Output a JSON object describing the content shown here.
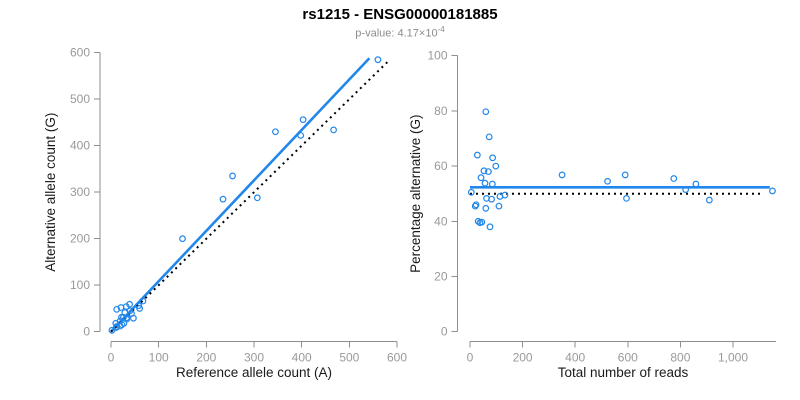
{
  "header": {
    "title": "rs1215 - ENSG00000181885",
    "subtitle_prefix": "p-value: ",
    "subtitle_value": "4.17×10",
    "subtitle_exponent": "-4"
  },
  "colors": {
    "accent_blue": "#2287ea",
    "dotted_black": "#000000",
    "axis_gray": "#8e8e8e",
    "tick_label_gray": "#999999",
    "title_black": "#000000",
    "subtitle_gray": "#8c8c8c"
  },
  "chart_data": [
    {
      "type": "scatter",
      "name": "allele-counts",
      "xlabel": "Reference allele count (A)",
      "ylabel": "Alternative allele count (G)",
      "xlim": [
        0,
        600
      ],
      "ylim": [
        0,
        600
      ],
      "xticks": [
        0,
        100,
        200,
        300,
        400,
        500,
        600
      ],
      "xtick_labels": [
        "0",
        "100",
        "200",
        "300",
        "400",
        "500",
        "600"
      ],
      "yticks": [
        0,
        100,
        200,
        300,
        400,
        500,
        600
      ],
      "ytick_labels": [
        "0",
        "100",
        "200",
        "300",
        "400",
        "500",
        "600"
      ],
      "grid": false,
      "legend": "none",
      "points": [
        [
          12,
          48
        ],
        [
          21,
          52
        ],
        [
          10,
          18
        ],
        [
          32,
          54
        ],
        [
          39,
          59
        ],
        [
          22,
          31
        ],
        [
          29,
          41
        ],
        [
          19,
          23
        ],
        [
          26,
          31
        ],
        [
          40,
          45
        ],
        [
          2,
          3
        ],
        [
          67,
          66
        ],
        [
          58,
          56
        ],
        [
          33,
          30
        ],
        [
          43,
          39
        ],
        [
          12,
          11
        ],
        [
          11,
          9
        ],
        [
          60,
          50
        ],
        [
          33,
          27
        ],
        [
          19,
          12
        ],
        [
          23,
          15
        ],
        [
          27,
          18
        ],
        [
          47,
          29
        ],
        [
          150,
          200
        ],
        [
          235,
          285
        ],
        [
          255,
          335
        ],
        [
          307,
          288
        ],
        [
          345,
          430
        ],
        [
          398,
          422
        ],
        [
          403,
          456
        ],
        [
          467,
          434
        ],
        [
          560,
          585
        ]
      ],
      "lines": [
        {
          "name": "regression-fit",
          "style": "solid",
          "color": "#2287ea",
          "width": 2.6,
          "from": [
            0,
            0
          ],
          "to": [
            542,
            588
          ]
        },
        {
          "name": "identity-line",
          "style": "dotted",
          "color": "#000000",
          "width": 2,
          "from": [
            0,
            0
          ],
          "to": [
            582,
            582
          ]
        }
      ]
    },
    {
      "type": "scatter",
      "name": "percentage-vs-coverage",
      "xlabel": "Total number of reads",
      "ylabel": "Percentage alternative (G)",
      "xlim": [
        0,
        1160
      ],
      "ylim": [
        0,
        100
      ],
      "xticks": [
        0,
        200,
        400,
        600,
        800,
        1000
      ],
      "xtick_labels": [
        "0",
        "200",
        "400",
        "600",
        "800",
        "1,000"
      ],
      "yticks": [
        0,
        20,
        40,
        60,
        80,
        100
      ],
      "ytick_labels": [
        "0",
        "20",
        "40",
        "60",
        "80",
        "100"
      ],
      "grid": false,
      "legend": "none",
      "points": [
        [
          60,
          79.7
        ],
        [
          73,
          70.6
        ],
        [
          28,
          64
        ],
        [
          86,
          63
        ],
        [
          98,
          60
        ],
        [
          53,
          58.3
        ],
        [
          70,
          58
        ],
        [
          42,
          55.8
        ],
        [
          57,
          53.8
        ],
        [
          85,
          53.5
        ],
        [
          5,
          50.5
        ],
        [
          133,
          49.5
        ],
        [
          114,
          49
        ],
        [
          63,
          48.3
        ],
        [
          82,
          48
        ],
        [
          23,
          46
        ],
        [
          20,
          45.5
        ],
        [
          110,
          45.5
        ],
        [
          60,
          44.7
        ],
        [
          31,
          40
        ],
        [
          38,
          39.5
        ],
        [
          45,
          39.7
        ],
        [
          76,
          38
        ],
        [
          350,
          56.8
        ],
        [
          523,
          54.5
        ],
        [
          590,
          56.8
        ],
        [
          595,
          48.3
        ],
        [
          775,
          55.5
        ],
        [
          820,
          51.5
        ],
        [
          859,
          53.5
        ],
        [
          910,
          47.7
        ],
        [
          1150,
          51
        ]
      ],
      "lines": [
        {
          "name": "mean-percentage-line",
          "style": "solid",
          "color": "#2287ea",
          "width": 2.6,
          "from": [
            0,
            52.3
          ],
          "to": [
            1140,
            52.3
          ]
        },
        {
          "name": "fifty-percent-line",
          "style": "dotted",
          "color": "#000000",
          "width": 2,
          "from": [
            0,
            50
          ],
          "to": [
            1118,
            50
          ]
        }
      ]
    }
  ]
}
